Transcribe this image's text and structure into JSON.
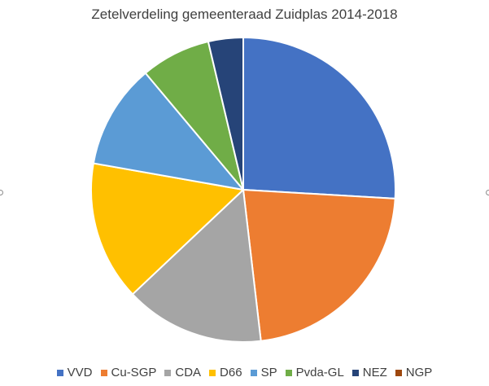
{
  "chart_data": {
    "type": "pie",
    "title": "Zetelverdeling gemeenteraad Zuidplas 2014-2018",
    "categories": [
      "VVD",
      "Cu-SGP",
      "CDA",
      "D66",
      "SP",
      "Pvda-GL",
      "NEZ",
      "NGP"
    ],
    "values": [
      7,
      6,
      4,
      4,
      3,
      2,
      1,
      0
    ],
    "colors": [
      "#4472C4",
      "#ED7D31",
      "#A5A5A5",
      "#FFC000",
      "#5B9BD5",
      "#70AD47",
      "#264478",
      "#9E480E"
    ],
    "legend_position": "bottom"
  }
}
